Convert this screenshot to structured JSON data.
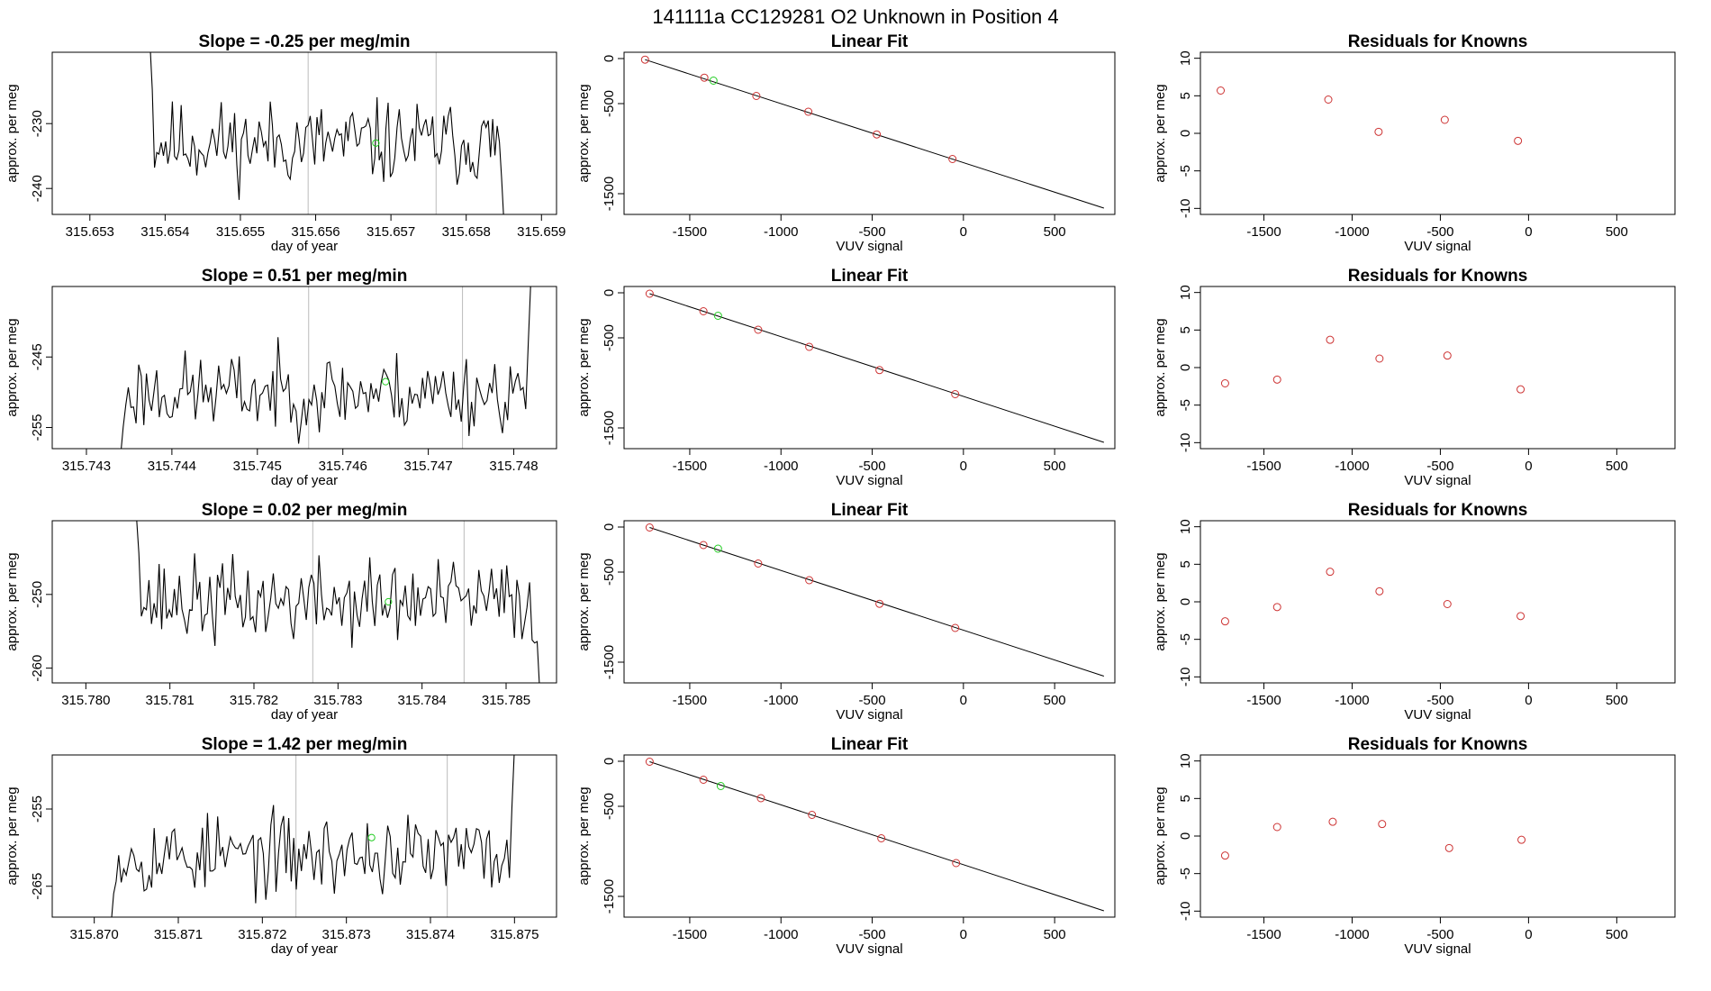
{
  "figure": {
    "title": "141111a      CC129281    O2 Unknown in Position  4"
  },
  "chart_data": [
    {
      "id": "r0-trace",
      "type": "line",
      "title": "Slope =  -0.25  per meg/min",
      "xlabel": "day of year",
      "ylabel": "approx. per meg",
      "xlim": [
        315.6525,
        315.6592
      ],
      "ylim": [
        -244,
        -219
      ],
      "xticks": [
        315.653,
        315.654,
        315.655,
        315.656,
        315.657,
        315.658,
        315.659
      ],
      "xticklabels": [
        "315.653",
        "315.654",
        "315.655",
        "315.656",
        "315.657",
        "315.658",
        "315.659"
      ],
      "yticks": [
        -240,
        -230
      ],
      "yticklabels": [
        "-240",
        "-230"
      ],
      "x_start": 315.6538,
      "x_end": 315.6585,
      "n_points": 160,
      "seed": 11,
      "baseline": -233,
      "noise": 3.2,
      "slope_per_day": -0.25,
      "start_spike": -218,
      "end_drop": -245,
      "vlines": [
        315.6559,
        315.6576
      ],
      "marker": {
        "x": 315.6568,
        "y": -233,
        "color": "#22cc22"
      },
      "grid": false
    },
    {
      "id": "r0-fit",
      "type": "scatter",
      "title": "Linear Fit",
      "xlabel": "VUV signal",
      "ylabel": "approx. per meg",
      "xlim": [
        -1860,
        830
      ],
      "ylim": [
        -1730,
        70
      ],
      "xticks": [
        -1500,
        -1000,
        -500,
        0,
        500
      ],
      "xticklabels": [
        "-1500",
        "-1000",
        "-500",
        "0",
        "500"
      ],
      "yticks": [
        0,
        -500,
        -1500
      ],
      "yticklabels": [
        "0",
        "-500",
        "-1500"
      ],
      "knowns": [
        [
          -1745,
          -12
        ],
        [
          -1420,
          -212
        ],
        [
          -1135,
          -415
        ],
        [
          -850,
          -590
        ],
        [
          -475,
          -842
        ],
        [
          -60,
          -1115
        ]
      ],
      "unknown": [
        -1370,
        -245
      ],
      "fit_line": {
        "x": [
          -1745,
          770
        ],
        "y": [
          -12,
          -1660
        ]
      },
      "grid": false
    },
    {
      "id": "r0-resid",
      "type": "scatter",
      "title": "Residuals for Knowns",
      "xlabel": "VUV signal",
      "ylabel": "approx. per meg",
      "xlim": [
        -1860,
        830
      ],
      "ylim": [
        -10.8,
        10.8
      ],
      "xticks": [
        -1500,
        -1000,
        -500,
        0,
        500
      ],
      "xticklabels": [
        "-1500",
        "-1000",
        "-500",
        "0",
        "500"
      ],
      "yticks": [
        10,
        5,
        0,
        -5,
        -10
      ],
      "yticklabels": [
        "10",
        "5",
        "0",
        "-5",
        "-10"
      ],
      "points": [
        [
          -1745,
          5.7
        ],
        [
          -1135,
          4.5
        ],
        [
          -850,
          0.2
        ],
        [
          -475,
          1.8
        ],
        [
          -60,
          -1.0
        ]
      ],
      "grid": false
    },
    {
      "id": "r1-trace",
      "type": "line",
      "title": "Slope =  0.51  per meg/min",
      "xlabel": "day of year",
      "ylabel": "approx. per meg",
      "xlim": [
        315.7426,
        315.7485
      ],
      "ylim": [
        -258,
        -235
      ],
      "xticks": [
        315.743,
        315.744,
        315.745,
        315.746,
        315.747,
        315.748
      ],
      "xticklabels": [
        "315.743",
        "315.744",
        "315.745",
        "315.746",
        "315.747",
        "315.748"
      ],
      "yticks": [
        -255,
        -245
      ],
      "yticklabels": [
        "-255",
        "-245"
      ],
      "x_start": 315.7434,
      "x_end": 315.7482,
      "n_points": 160,
      "seed": 23,
      "baseline": -250,
      "noise": 2.8,
      "slope_per_day": 0.51,
      "start_spike": -259,
      "end_drop": -234,
      "vlines": [
        315.7456,
        315.7474
      ],
      "marker": {
        "x": 315.7465,
        "y": -248.5,
        "color": "#22cc22"
      },
      "grid": false
    },
    {
      "id": "r1-fit",
      "type": "scatter",
      "title": "Linear Fit",
      "xlabel": "VUV signal",
      "ylabel": "approx. per meg",
      "xlim": [
        -1860,
        830
      ],
      "ylim": [
        -1730,
        70
      ],
      "xticks": [
        -1500,
        -1000,
        -500,
        0,
        500
      ],
      "xticklabels": [
        "-1500",
        "-1000",
        "-500",
        "0",
        "500"
      ],
      "yticks": [
        0,
        -500,
        -1500
      ],
      "yticklabels": [
        "0",
        "-500",
        "-1500"
      ],
      "knowns": [
        [
          -1720,
          -10
        ],
        [
          -1425,
          -205
        ],
        [
          -1125,
          -410
        ],
        [
          -845,
          -600
        ],
        [
          -460,
          -858
        ],
        [
          -45,
          -1125
        ]
      ],
      "unknown": [
        -1345,
        -255
      ],
      "fit_line": {
        "x": [
          -1720,
          770
        ],
        "y": [
          -10,
          -1660
        ]
      },
      "grid": false
    },
    {
      "id": "r1-resid",
      "type": "scatter",
      "title": "Residuals for Knowns",
      "xlabel": "VUV signal",
      "ylabel": "approx. per meg",
      "xlim": [
        -1860,
        830
      ],
      "ylim": [
        -10.8,
        10.8
      ],
      "xticks": [
        -1500,
        -1000,
        -500,
        0,
        500
      ],
      "xticklabels": [
        "-1500",
        "-1000",
        "-500",
        "0",
        "500"
      ],
      "yticks": [
        10,
        5,
        0,
        -5,
        -10
      ],
      "yticklabels": [
        "10",
        "5",
        "0",
        "-5",
        "-10"
      ],
      "points": [
        [
          -1720,
          -2.1
        ],
        [
          -1425,
          -1.6
        ],
        [
          -1125,
          3.7
        ],
        [
          -845,
          1.2
        ],
        [
          -460,
          1.6
        ],
        [
          -45,
          -2.9
        ]
      ],
      "grid": false
    },
    {
      "id": "r2-trace",
      "type": "line",
      "title": "Slope =  0.02  per meg/min",
      "xlabel": "day of year",
      "ylabel": "approx. per meg",
      "xlim": [
        315.7796,
        315.7856
      ],
      "ylim": [
        -262,
        -240
      ],
      "xticks": [
        315.78,
        315.781,
        315.782,
        315.783,
        315.784,
        315.785
      ],
      "xticklabels": [
        "315.780",
        "315.781",
        "315.782",
        "315.783",
        "315.784",
        "315.785"
      ],
      "yticks": [
        -260,
        -250
      ],
      "yticklabels": [
        "-260",
        "-250"
      ],
      "x_start": 315.7806,
      "x_end": 315.7854,
      "n_points": 160,
      "seed": 37,
      "baseline": -251,
      "noise": 2.9,
      "slope_per_day": 0.02,
      "start_spike": -239,
      "end_drop": -263,
      "vlines": [
        315.7827,
        315.7845
      ],
      "marker": {
        "x": 315.7836,
        "y": -251,
        "color": "#22cc22"
      },
      "grid": false
    },
    {
      "id": "r2-fit",
      "type": "scatter",
      "title": "Linear Fit",
      "xlabel": "VUV signal",
      "ylabel": "approx. per meg",
      "xlim": [
        -1860,
        830
      ],
      "ylim": [
        -1730,
        70
      ],
      "xticks": [
        -1500,
        -1000,
        -500,
        0,
        500
      ],
      "xticklabels": [
        "-1500",
        "-1000",
        "-500",
        "0",
        "500"
      ],
      "yticks": [
        0,
        -500,
        -1500
      ],
      "yticklabels": [
        "0",
        "-500",
        "-1500"
      ],
      "knowns": [
        [
          -1720,
          -5
        ],
        [
          -1425,
          -200
        ],
        [
          -1125,
          -405
        ],
        [
          -845,
          -590
        ],
        [
          -460,
          -852
        ],
        [
          -45,
          -1120
        ]
      ],
      "unknown": [
        -1345,
        -240
      ],
      "fit_line": {
        "x": [
          -1720,
          770
        ],
        "y": [
          -5,
          -1655
        ]
      },
      "grid": false
    },
    {
      "id": "r2-resid",
      "type": "scatter",
      "title": "Residuals for Knowns",
      "xlabel": "VUV signal",
      "ylabel": "approx. per meg",
      "xlim": [
        -1860,
        830
      ],
      "ylim": [
        -10.8,
        10.8
      ],
      "xticks": [
        -1500,
        -1000,
        -500,
        0,
        500
      ],
      "xticklabels": [
        "-1500",
        "-1000",
        "-500",
        "0",
        "500"
      ],
      "yticks": [
        10,
        5,
        0,
        -5,
        -10
      ],
      "yticklabels": [
        "10",
        "5",
        "0",
        "-5",
        "-10"
      ],
      "points": [
        [
          -1720,
          -2.6
        ],
        [
          -1425,
          -0.7
        ],
        [
          -1125,
          4.0
        ],
        [
          -845,
          1.4
        ],
        [
          -460,
          -0.3
        ],
        [
          -45,
          -1.9
        ]
      ],
      "grid": false
    },
    {
      "id": "r3-trace",
      "type": "line",
      "title": "Slope =  1.42  per meg/min",
      "xlabel": "day of year",
      "ylabel": "approx. per meg",
      "xlim": [
        315.8695,
        315.8755
      ],
      "ylim": [
        -269,
        -248
      ],
      "xticks": [
        315.87,
        315.871,
        315.872,
        315.873,
        315.874,
        315.875
      ],
      "xticklabels": [
        "315.870",
        "315.871",
        "315.872",
        "315.873",
        "315.874",
        "315.875"
      ],
      "yticks": [
        -265,
        -255
      ],
      "yticklabels": [
        "-265",
        "-255"
      ],
      "x_start": 315.8702,
      "x_end": 315.875,
      "n_points": 160,
      "seed": 53,
      "baseline": -261,
      "noise": 2.6,
      "slope_per_day": 1.42,
      "start_spike": -270,
      "end_drop": -247,
      "vlines": [
        315.8724,
        315.8742
      ],
      "marker": {
        "x": 315.8733,
        "y": -258.7,
        "color": "#22cc22"
      },
      "grid": false
    },
    {
      "id": "r3-fit",
      "type": "scatter",
      "title": "Linear Fit",
      "xlabel": "VUV signal",
      "ylabel": "approx. per meg",
      "xlim": [
        -1860,
        830
      ],
      "ylim": [
        -1730,
        70
      ],
      "xticks": [
        -1500,
        -1000,
        -500,
        0,
        500
      ],
      "xticklabels": [
        "-1500",
        "-1000",
        "-500",
        "0",
        "500"
      ],
      "yticks": [
        0,
        -500,
        -1500
      ],
      "yticklabels": [
        "0",
        "-500",
        "-1500"
      ],
      "knowns": [
        [
          -1720,
          -5
        ],
        [
          -1425,
          -205
        ],
        [
          -1110,
          -410
        ],
        [
          -830,
          -595
        ],
        [
          -450,
          -855
        ],
        [
          -40,
          -1130
        ]
      ],
      "unknown": [
        -1330,
        -275
      ],
      "fit_line": {
        "x": [
          -1720,
          770
        ],
        "y": [
          -5,
          -1660
        ]
      },
      "grid": false
    },
    {
      "id": "r3-resid",
      "type": "scatter",
      "title": "Residuals for Knowns",
      "xlabel": "VUV signal",
      "ylabel": "approx. per meg",
      "xlim": [
        -1860,
        830
      ],
      "ylim": [
        -10.8,
        10.8
      ],
      "xticks": [
        -1500,
        -1000,
        -500,
        0,
        500
      ],
      "xticklabels": [
        "-1500",
        "-1000",
        "-500",
        "0",
        "500"
      ],
      "yticks": [
        10,
        5,
        0,
        -5,
        -10
      ],
      "yticklabels": [
        "10",
        "5",
        "0",
        "-5",
        "-10"
      ],
      "points": [
        [
          -1720,
          -2.6
        ],
        [
          -1425,
          1.2
        ],
        [
          -1110,
          1.9
        ],
        [
          -830,
          1.6
        ],
        [
          -450,
          -1.6
        ],
        [
          -40,
          -0.5
        ]
      ],
      "grid": false
    }
  ],
  "colors": {
    "trace": "#000000",
    "vline": "#bbbbbb",
    "known_points": "#cd3333",
    "unknown_point": "#22cc22",
    "fit_line": "#000000"
  }
}
